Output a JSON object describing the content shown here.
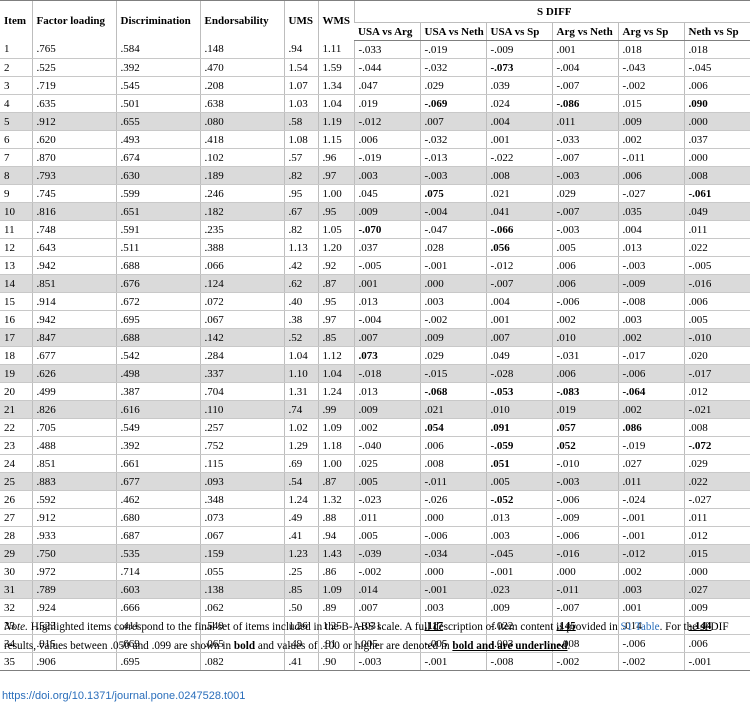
{
  "table": {
    "headers": {
      "item": "Item",
      "factor_loading": "Factor loading",
      "discrimination": "Discrimination",
      "endorsability": "Endorsability",
      "ums": "UMS",
      "wms": "WMS",
      "sdiff": "S DIFF",
      "comparisons": [
        "USA vs Arg",
        "USA vs Neth",
        "USA vs Sp",
        "Arg vs Neth",
        "Arg vs Sp",
        "Neth vs Sp"
      ]
    },
    "rows": [
      {
        "item": "1",
        "highlight": false,
        "values": [
          ".765",
          ".584",
          ".148",
          ".94",
          "1.11"
        ],
        "diff": [
          "-.033",
          "-.019",
          "-.009",
          ".001",
          ".018",
          ".018"
        ],
        "bold": [],
        "bold_underline": []
      },
      {
        "item": "2",
        "highlight": false,
        "values": [
          ".525",
          ".392",
          ".470",
          "1.54",
          "1.59"
        ],
        "diff": [
          "-.044",
          "-.032",
          "-.073",
          "-.004",
          "-.043",
          "-.045"
        ],
        "bold": [
          2
        ],
        "bold_underline": []
      },
      {
        "item": "3",
        "highlight": false,
        "values": [
          ".719",
          ".545",
          ".208",
          "1.07",
          "1.34"
        ],
        "diff": [
          ".047",
          ".029",
          ".039",
          "-.007",
          "-.002",
          ".006"
        ],
        "bold": [],
        "bold_underline": []
      },
      {
        "item": "4",
        "highlight": false,
        "values": [
          ".635",
          ".501",
          ".638",
          "1.03",
          "1.04"
        ],
        "diff": [
          ".019",
          "-.069",
          ".024",
          "-.086",
          ".015",
          ".090"
        ],
        "bold": [
          1,
          3,
          5
        ],
        "bold_underline": []
      },
      {
        "item": "5",
        "highlight": true,
        "values": [
          ".912",
          ".655",
          ".080",
          ".58",
          "1.19"
        ],
        "diff": [
          "-.012",
          ".007",
          ".004",
          ".011",
          ".009",
          ".000"
        ],
        "bold": [],
        "bold_underline": []
      },
      {
        "item": "6",
        "highlight": false,
        "values": [
          ".620",
          ".493",
          ".418",
          "1.08",
          "1.15"
        ],
        "diff": [
          ".006",
          "-.032",
          ".001",
          "-.033",
          ".002",
          ".037"
        ],
        "bold": [],
        "bold_underline": []
      },
      {
        "item": "7",
        "highlight": false,
        "values": [
          ".870",
          ".674",
          ".102",
          ".57",
          ".96"
        ],
        "diff": [
          "-.019",
          "-.013",
          "-.022",
          "-.007",
          "-.011",
          ".000"
        ],
        "bold": [],
        "bold_underline": []
      },
      {
        "item": "8",
        "highlight": true,
        "values": [
          ".793",
          ".630",
          ".189",
          ".82",
          ".97"
        ],
        "diff": [
          ".003",
          "-.003",
          ".008",
          "-.003",
          ".006",
          ".008"
        ],
        "bold": [],
        "bold_underline": []
      },
      {
        "item": "9",
        "highlight": false,
        "values": [
          ".745",
          ".599",
          ".246",
          ".95",
          "1.00"
        ],
        "diff": [
          ".045",
          ".075",
          ".021",
          ".029",
          "-.027",
          "-.061"
        ],
        "bold": [
          1,
          5
        ],
        "bold_underline": []
      },
      {
        "item": "10",
        "highlight": true,
        "values": [
          ".816",
          ".651",
          ".182",
          ".67",
          ".95"
        ],
        "diff": [
          ".009",
          "-.004",
          ".041",
          "-.007",
          ".035",
          ".049"
        ],
        "bold": [],
        "bold_underline": []
      },
      {
        "item": "11",
        "highlight": false,
        "values": [
          ".748",
          ".591",
          ".235",
          ".82",
          "1.05"
        ],
        "diff": [
          "-.070",
          "-.047",
          "-.066",
          "-.003",
          ".004",
          ".011"
        ],
        "bold": [
          0,
          2
        ],
        "bold_underline": []
      },
      {
        "item": "12",
        "highlight": false,
        "values": [
          ".643",
          ".511",
          ".388",
          "1.13",
          "1.20"
        ],
        "diff": [
          ".037",
          ".028",
          ".056",
          ".005",
          ".013",
          ".022"
        ],
        "bold": [
          2
        ],
        "bold_underline": []
      },
      {
        "item": "13",
        "highlight": false,
        "values": [
          ".942",
          ".688",
          ".066",
          ".42",
          ".92"
        ],
        "diff": [
          "-.005",
          "-.001",
          "-.012",
          ".006",
          "-.003",
          "-.005"
        ],
        "bold": [],
        "bold_underline": []
      },
      {
        "item": "14",
        "highlight": true,
        "values": [
          ".851",
          ".676",
          ".124",
          ".62",
          ".87"
        ],
        "diff": [
          ".001",
          ".000",
          "-.007",
          ".006",
          "-.009",
          "-.016"
        ],
        "bold": [],
        "bold_underline": []
      },
      {
        "item": "15",
        "highlight": false,
        "values": [
          ".914",
          ".672",
          ".072",
          ".40",
          ".95"
        ],
        "diff": [
          ".013",
          ".003",
          ".004",
          "-.006",
          "-.008",
          ".006"
        ],
        "bold": [],
        "bold_underline": []
      },
      {
        "item": "16",
        "highlight": false,
        "values": [
          ".942",
          ".695",
          ".067",
          ".38",
          ".97"
        ],
        "diff": [
          "-.004",
          "-.002",
          ".001",
          ".002",
          ".003",
          ".005"
        ],
        "bold": [],
        "bold_underline": []
      },
      {
        "item": "17",
        "highlight": true,
        "values": [
          ".847",
          ".688",
          ".142",
          ".52",
          ".85"
        ],
        "diff": [
          ".007",
          ".009",
          ".007",
          ".010",
          ".002",
          "-.010"
        ],
        "bold": [],
        "bold_underline": []
      },
      {
        "item": "18",
        "highlight": false,
        "values": [
          ".677",
          ".542",
          ".284",
          "1.04",
          "1.12"
        ],
        "diff": [
          ".073",
          ".029",
          ".049",
          "-.031",
          "-.017",
          ".020"
        ],
        "bold": [
          0
        ],
        "bold_underline": []
      },
      {
        "item": "19",
        "highlight": true,
        "values": [
          ".626",
          ".498",
          ".337",
          "1.10",
          "1.04"
        ],
        "diff": [
          "-.018",
          "-.015",
          "-.028",
          ".006",
          "-.006",
          "-.017"
        ],
        "bold": [],
        "bold_underline": []
      },
      {
        "item": "20",
        "highlight": false,
        "values": [
          ".499",
          ".387",
          ".704",
          "1.31",
          "1.24"
        ],
        "diff": [
          ".013",
          "-.068",
          "-.053",
          "-.083",
          "-.064",
          ".012"
        ],
        "bold": [
          1,
          2,
          3,
          4
        ],
        "bold_underline": []
      },
      {
        "item": "21",
        "highlight": true,
        "values": [
          ".826",
          ".616",
          ".110",
          ".74",
          ".99"
        ],
        "diff": [
          ".009",
          ".021",
          ".010",
          ".019",
          ".002",
          "-.021"
        ],
        "bold": [],
        "bold_underline": []
      },
      {
        "item": "22",
        "highlight": false,
        "values": [
          ".705",
          ".549",
          ".257",
          "1.02",
          "1.09"
        ],
        "diff": [
          ".002",
          ".054",
          ".091",
          ".057",
          ".086",
          ".008"
        ],
        "bold": [
          1,
          2,
          3,
          4
        ],
        "bold_underline": []
      },
      {
        "item": "23",
        "highlight": false,
        "values": [
          ".488",
          ".392",
          ".752",
          "1.29",
          "1.18"
        ],
        "diff": [
          "-.040",
          ".006",
          "-.059",
          ".052",
          "-.019",
          "-.072"
        ],
        "bold": [
          2,
          3,
          5
        ],
        "bold_underline": []
      },
      {
        "item": "24",
        "highlight": false,
        "values": [
          ".851",
          ".661",
          ".115",
          ".69",
          "1.00"
        ],
        "diff": [
          ".025",
          ".008",
          ".051",
          "-.010",
          ".027",
          ".029"
        ],
        "bold": [
          2
        ],
        "bold_underline": []
      },
      {
        "item": "25",
        "highlight": true,
        "values": [
          ".883",
          ".677",
          ".093",
          ".54",
          ".87"
        ],
        "diff": [
          ".005",
          "-.011",
          ".005",
          "-.003",
          ".011",
          ".022"
        ],
        "bold": [],
        "bold_underline": []
      },
      {
        "item": "26",
        "highlight": false,
        "values": [
          ".592",
          ".462",
          ".348",
          "1.24",
          "1.32"
        ],
        "diff": [
          "-.023",
          "-.026",
          "-.052",
          "-.006",
          "-.024",
          "-.027"
        ],
        "bold": [
          2
        ],
        "bold_underline": []
      },
      {
        "item": "27",
        "highlight": false,
        "values": [
          ".912",
          ".680",
          ".073",
          ".49",
          ".88"
        ],
        "diff": [
          ".011",
          ".000",
          ".013",
          "-.009",
          "-.001",
          ".011"
        ],
        "bold": [],
        "bold_underline": []
      },
      {
        "item": "28",
        "highlight": false,
        "values": [
          ".933",
          ".687",
          ".067",
          ".41",
          ".94"
        ],
        "diff": [
          ".005",
          "-.006",
          ".003",
          "-.006",
          "-.001",
          ".012"
        ],
        "bold": [],
        "bold_underline": []
      },
      {
        "item": "29",
        "highlight": true,
        "values": [
          ".750",
          ".535",
          ".159",
          "1.23",
          "1.43"
        ],
        "diff": [
          "-.039",
          "-.034",
          "-.045",
          "-.016",
          "-.012",
          ".015"
        ],
        "bold": [],
        "bold_underline": []
      },
      {
        "item": "30",
        "highlight": false,
        "values": [
          ".972",
          ".714",
          ".055",
          ".25",
          ".86"
        ],
        "diff": [
          "-.002",
          ".000",
          "-.001",
          ".000",
          ".002",
          ".000"
        ],
        "bold": [],
        "bold_underline": []
      },
      {
        "item": "31",
        "highlight": true,
        "values": [
          ".789",
          ".603",
          ".138",
          ".85",
          "1.09"
        ],
        "diff": [
          ".014",
          "-.001",
          ".023",
          "-.011",
          ".003",
          ".027"
        ],
        "bold": [],
        "bold_underline": []
      },
      {
        "item": "32",
        "highlight": false,
        "values": [
          ".924",
          ".666",
          ".062",
          ".50",
          ".89"
        ],
        "diff": [
          ".007",
          ".003",
          ".009",
          "-.007",
          ".001",
          ".009"
        ],
        "bold": [],
        "bold_underline": []
      },
      {
        "item": "33",
        "highlight": false,
        "values": [
          ".523",
          ".411",
          ".549",
          "1.26",
          "1.25"
        ],
        "diff": [
          "-.031",
          ".117",
          "-.022",
          ".145",
          ".014",
          "-.144"
        ],
        "bold": [],
        "bold_underline": [
          1,
          3,
          5
        ]
      },
      {
        "item": "34",
        "highlight": false,
        "values": [
          ".915",
          ".669",
          ".065",
          ".49",
          ".91"
        ],
        "diff": [
          ".005",
          "-.005",
          "-.003",
          "-.008",
          "-.006",
          ".006"
        ],
        "bold": [],
        "bold_underline": []
      },
      {
        "item": "35",
        "highlight": false,
        "values": [
          ".906",
          ".695",
          ".082",
          ".41",
          ".90"
        ],
        "diff": [
          "-.003",
          "-.001",
          "-.008",
          "-.002",
          "-.002",
          "-.001"
        ],
        "bold": [],
        "bold_underline": []
      }
    ]
  },
  "note": {
    "label": "Note.",
    "text1": " Highlighted items correspond to the final set of items included in the B-ABS scale. A full description of item content is provided in ",
    "link": "S1 Table",
    "text2": ". For the sPDIF results, values between .050 and .099 are shown in ",
    "bold_word": "bold",
    "text3": " and values of .100 or higher are denoted in ",
    "bold_underline_words": "bold and are underlined",
    "text4": "."
  },
  "doi": "https://doi.org/10.1371/journal.pone.0247528.t001",
  "colors": {
    "highlight_row": "#dadada",
    "link": "#2a6ebb"
  }
}
